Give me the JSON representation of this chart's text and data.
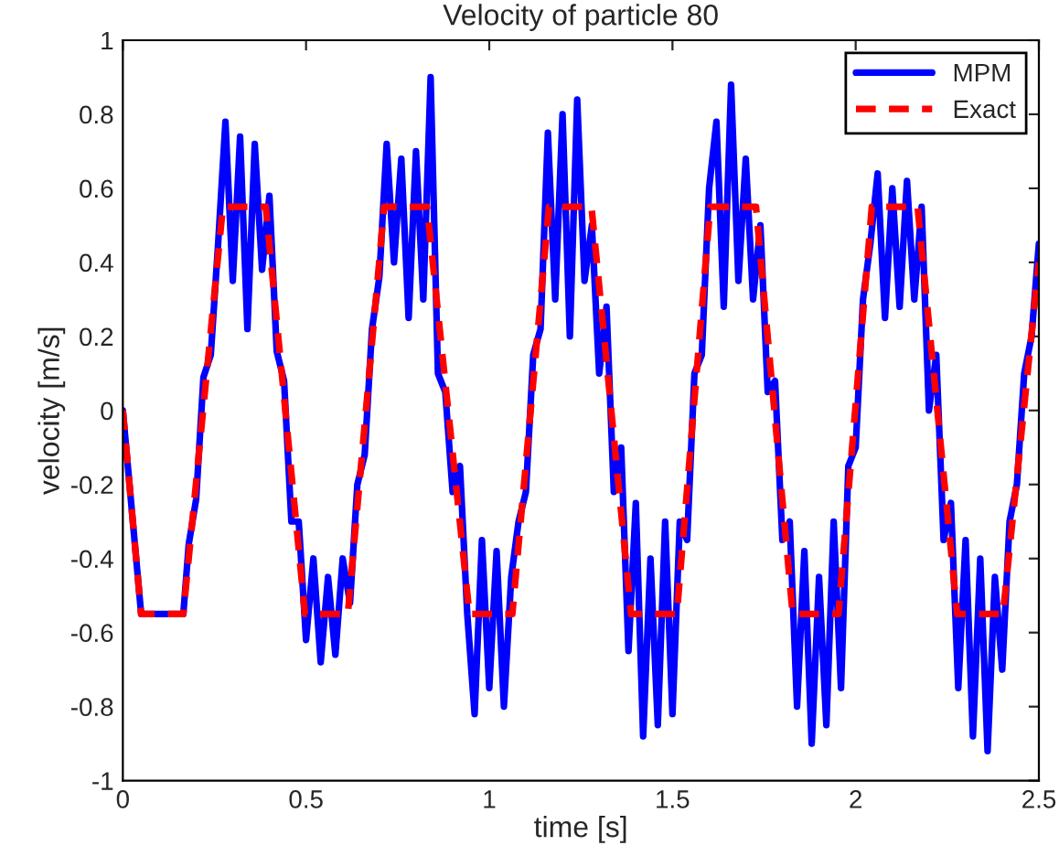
{
  "chart_data": {
    "type": "line",
    "title": "Velocity of particle 80",
    "xlabel": "time [s]",
    "ylabel": "velocity [m/s]",
    "xlim": [
      0,
      2.5
    ],
    "xticks": [
      0,
      0.5,
      1,
      1.5,
      2,
      2.5
    ],
    "ylim": [
      -1,
      1
    ],
    "yticks": [
      -1,
      -0.8,
      -0.6,
      -0.4,
      -0.2,
      0,
      0.2,
      0.4,
      0.6,
      0.8,
      1
    ],
    "legend": "top right",
    "grid": false,
    "series": [
      {
        "name": "MPM",
        "color": "#0000ff",
        "line_style": "solid",
        "x": [
          0,
          0.05,
          0.165,
          0.18,
          0.2,
          0.22,
          0.24,
          0.26,
          0.28,
          0.3,
          0.32,
          0.34,
          0.36,
          0.38,
          0.4,
          0.42,
          0.44,
          0.46,
          0.48,
          0.5,
          0.52,
          0.54,
          0.56,
          0.58,
          0.6,
          0.62,
          0.64,
          0.66,
          0.68,
          0.7,
          0.72,
          0.74,
          0.76,
          0.78,
          0.8,
          0.82,
          0.84,
          0.86,
          0.88,
          0.9,
          0.92,
          0.94,
          0.96,
          0.98,
          1.0,
          1.02,
          1.04,
          1.06,
          1.08,
          1.1,
          1.12,
          1.14,
          1.16,
          1.18,
          1.2,
          1.22,
          1.24,
          1.26,
          1.28,
          1.3,
          1.32,
          1.34,
          1.36,
          1.38,
          1.4,
          1.42,
          1.44,
          1.46,
          1.48,
          1.5,
          1.52,
          1.54,
          1.56,
          1.58,
          1.6,
          1.62,
          1.64,
          1.66,
          1.68,
          1.7,
          1.72,
          1.74,
          1.76,
          1.78,
          1.8,
          1.82,
          1.84,
          1.86,
          1.88,
          1.9,
          1.92,
          1.94,
          1.96,
          1.98,
          2.0,
          2.02,
          2.04,
          2.06,
          2.08,
          2.1,
          2.12,
          2.14,
          2.16,
          2.18,
          2.2,
          2.22,
          2.24,
          2.26,
          2.28,
          2.3,
          2.32,
          2.34,
          2.36,
          2.38,
          2.4,
          2.42,
          2.44,
          2.46,
          2.48,
          2.5
        ],
        "values": [
          0,
          -0.55,
          -0.55,
          -0.36,
          -0.24,
          0.09,
          0.15,
          0.45,
          0.78,
          0.35,
          0.74,
          0.22,
          0.72,
          0.38,
          0.58,
          0.16,
          0.08,
          -0.3,
          -0.3,
          -0.62,
          -0.4,
          -0.68,
          -0.45,
          -0.66,
          -0.4,
          -0.52,
          -0.2,
          -0.12,
          0.22,
          0.36,
          0.72,
          0.4,
          0.68,
          0.25,
          0.7,
          0.3,
          0.9,
          0.1,
          0.05,
          -0.22,
          -0.15,
          -0.55,
          -0.82,
          -0.35,
          -0.75,
          -0.38,
          -0.8,
          -0.45,
          -0.3,
          -0.22,
          0.15,
          0.22,
          0.75,
          0.3,
          0.8,
          0.2,
          0.84,
          0.35,
          0.5,
          0.1,
          0.28,
          -0.22,
          -0.1,
          -0.65,
          -0.25,
          -0.88,
          -0.4,
          -0.85,
          -0.3,
          -0.82,
          -0.3,
          -0.35,
          0.1,
          0.15,
          0.6,
          0.78,
          0.28,
          0.88,
          0.35,
          0.68,
          0.3,
          0.5,
          0.05,
          0.08,
          -0.35,
          -0.3,
          -0.8,
          -0.38,
          -0.9,
          -0.45,
          -0.85,
          -0.3,
          -0.75,
          -0.15,
          -0.1,
          0.3,
          0.45,
          0.64,
          0.25,
          0.6,
          0.28,
          0.62,
          0.3,
          0.55,
          0.0,
          0.15,
          -0.35,
          -0.25,
          -0.75,
          -0.35,
          -0.88,
          -0.4,
          -0.92,
          -0.45,
          -0.7,
          -0.3,
          -0.2,
          0.1,
          0.2,
          0.45
        ]
      },
      {
        "name": "Exact",
        "color": "#ff0000",
        "line_style": "dashed",
        "x": [
          0,
          0.05,
          0.165,
          0.273,
          0.39,
          0.497,
          0.614,
          0.713,
          0.83,
          0.946,
          1.063,
          1.163,
          1.279,
          1.387,
          1.512,
          1.603,
          1.728,
          1.828,
          1.953,
          2.044,
          2.169,
          2.277,
          2.402,
          2.5
        ],
        "values": [
          0,
          -0.55,
          -0.55,
          0.55,
          0.55,
          -0.55,
          -0.55,
          0.55,
          0.55,
          -0.55,
          -0.55,
          0.55,
          0.55,
          -0.55,
          -0.55,
          0.55,
          0.55,
          -0.55,
          -0.55,
          0.55,
          0.55,
          -0.55,
          -0.55,
          0.4
        ]
      }
    ]
  }
}
